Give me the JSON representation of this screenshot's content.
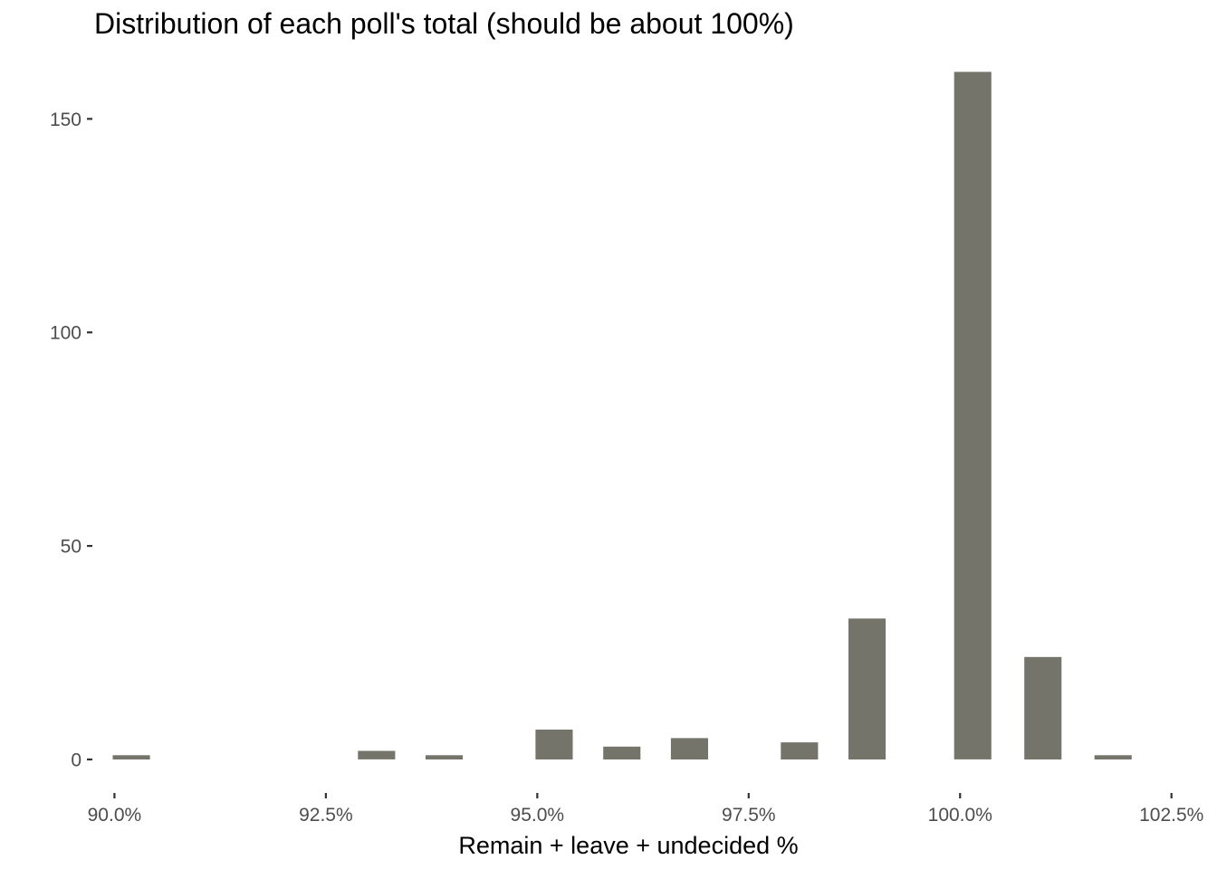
{
  "chart_data": {
    "type": "bar",
    "title": "Distribution of each poll's total (should be about 100%)",
    "xlabel": "Remain + leave + undecided %",
    "ylabel": "",
    "bar_color": "#74746b",
    "grid": false,
    "legend": "none",
    "xlim": [
      0.8976,
      1.0276
    ],
    "ylim": [
      -7,
      163
    ],
    "bin_width": 0.01,
    "x_ticks": [
      {
        "value": 0.9,
        "label": "90.0%"
      },
      {
        "value": 0.925,
        "label": "92.5%"
      },
      {
        "value": 0.95,
        "label": "95.0%"
      },
      {
        "value": 0.975,
        "label": "97.5%"
      },
      {
        "value": 1.0,
        "label": "100.0%"
      },
      {
        "value": 1.025,
        "label": "102.5%"
      }
    ],
    "y_ticks": [
      {
        "value": 0,
        "label": "0"
      },
      {
        "value": 50,
        "label": "50"
      },
      {
        "value": 100,
        "label": "100"
      },
      {
        "value": 150,
        "label": "150"
      }
    ],
    "bars": [
      {
        "x": 0.902,
        "count": 1
      },
      {
        "x": 0.931,
        "count": 2
      },
      {
        "x": 0.939,
        "count": 1
      },
      {
        "x": 0.952,
        "count": 7
      },
      {
        "x": 0.96,
        "count": 3
      },
      {
        "x": 0.968,
        "count": 5
      },
      {
        "x": 0.981,
        "count": 4
      },
      {
        "x": 0.989,
        "count": 33
      },
      {
        "x": 1.0015,
        "count": 161
      },
      {
        "x": 1.0098,
        "count": 24
      },
      {
        "x": 1.0181,
        "count": 1
      }
    ]
  }
}
